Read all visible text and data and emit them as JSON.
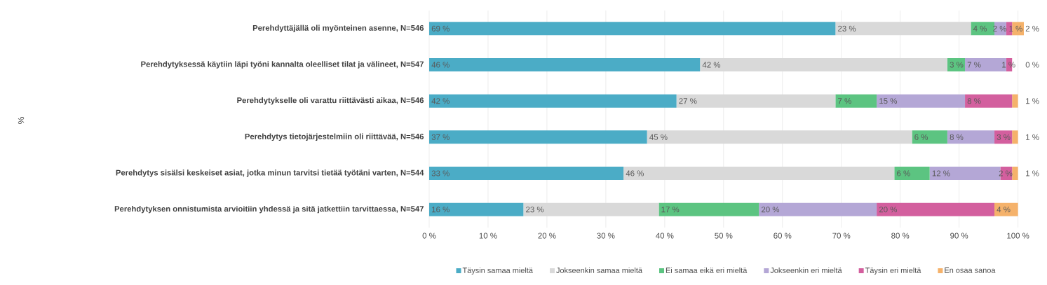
{
  "chart_data": {
    "type": "bar",
    "orientation": "horizontal",
    "stacked": true,
    "annotations": [
      "%"
    ],
    "categories": [
      "Perehdyttäjällä oli myönteinen asenne, N=546",
      "Perehdytyksessä käytiin läpi työni kannalta oleelliset tilat ja välineet, N=547",
      "Perehdytykselle oli varattu riittävästi aikaa, N=546",
      "Perehdytys tietojärjestelmiin oli riittävää, N=546",
      "Perehdytys sisälsi keskeiset asiat, jotka minun tarvitsi tietää työtäni varten, N=544",
      "Perehdytyksen onnistumista arvioitiin yhdessä ja sitä jatkettiin tarvittaessa, N=547"
    ],
    "series": [
      {
        "name": "Täysin samaa mieltä",
        "color": "#4bacc6",
        "values": [
          69,
          46,
          42,
          37,
          33,
          16
        ],
        "value_labels": [
          "69 %",
          "46 %",
          "42 %",
          "37 %",
          "33 %",
          "16 %"
        ]
      },
      {
        "name": "Jokseenkin samaa mieltä",
        "color": "#d9d9d9",
        "values": [
          23,
          42,
          27,
          45,
          46,
          23
        ],
        "value_labels": [
          "23 %",
          "42 %",
          "27 %",
          "45 %",
          "46 %",
          "23 %"
        ]
      },
      {
        "name": "Ei samaa eikä eri mieltä",
        "color": "#5cc481",
        "values": [
          4,
          3,
          7,
          6,
          6,
          17
        ],
        "value_labels": [
          "4 %",
          "3 %",
          "7 %",
          "6 %",
          "6 %",
          "17 %"
        ]
      },
      {
        "name": "Jokseenkin eri mieltä",
        "color": "#b4a7d6",
        "values": [
          2,
          7,
          15,
          8,
          12,
          20
        ],
        "value_labels": [
          "2 %",
          "7 %",
          "15 %",
          "8 %",
          "12 %",
          "20 %"
        ]
      },
      {
        "name": "Täysin eri mieltä",
        "color": "#d35f9e",
        "values": [
          1,
          1,
          8,
          3,
          2,
          20
        ],
        "value_labels": [
          "1 %",
          "1 %",
          "8 %",
          "3 %",
          "2 %",
          "20 %"
        ]
      },
      {
        "name": "En osaa sanoa",
        "color": "#f5b26b",
        "values": [
          2,
          0,
          1,
          1,
          1,
          4
        ],
        "value_labels": [
          "2 %",
          "0 %",
          "1 %",
          "1 %",
          "1 %",
          "4 %"
        ]
      }
    ],
    "xlim": [
      0,
      101
    ],
    "xticks": [
      {
        "value": 0,
        "label": "0 %"
      },
      {
        "value": 10,
        "label": "10 %"
      },
      {
        "value": 20,
        "label": "20 %"
      },
      {
        "value": 30,
        "label": "30 %"
      },
      {
        "value": 40,
        "label": "40 %"
      },
      {
        "value": 50,
        "label": "50 %"
      },
      {
        "value": 60,
        "label": "60 %"
      },
      {
        "value": 70,
        "label": "70 %"
      },
      {
        "value": 80,
        "label": "80 %"
      },
      {
        "value": 90,
        "label": "90 %"
      },
      {
        "value": 100,
        "label": "100 %"
      }
    ],
    "grid": "x",
    "legend": "bottom"
  }
}
